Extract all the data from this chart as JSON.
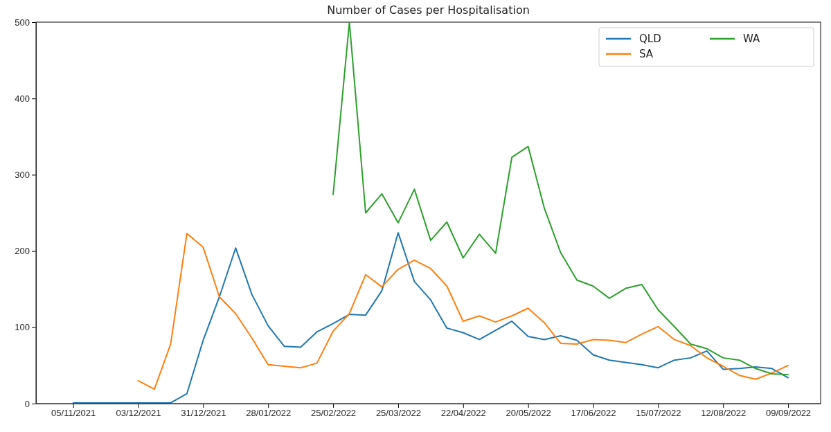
{
  "chart_data": {
    "type": "line",
    "title": "Number of Cases per Hospitalisation",
    "x": [
      "2021-11-05",
      "2021-11-12",
      "2021-11-19",
      "2021-11-26",
      "2021-12-03",
      "2021-12-10",
      "2021-12-17",
      "2021-12-24",
      "2021-12-31",
      "2022-01-07",
      "2022-01-14",
      "2022-01-21",
      "2022-01-28",
      "2022-02-04",
      "2022-02-11",
      "2022-02-18",
      "2022-02-25",
      "2022-03-04",
      "2022-03-11",
      "2022-03-18",
      "2022-03-25",
      "2022-04-01",
      "2022-04-08",
      "2022-04-15",
      "2022-04-22",
      "2022-04-29",
      "2022-05-06",
      "2022-05-13",
      "2022-05-20",
      "2022-05-27",
      "2022-06-03",
      "2022-06-10",
      "2022-06-17",
      "2022-06-24",
      "2022-07-01",
      "2022-07-08",
      "2022-07-15",
      "2022-07-22",
      "2022-07-29",
      "2022-08-05",
      "2022-08-12",
      "2022-08-19",
      "2022-08-26",
      "2022-09-02",
      "2022-09-09"
    ],
    "series": [
      {
        "name": "QLD",
        "color": "#1f77b4",
        "values": [
          1,
          1,
          1,
          1,
          1,
          1,
          1,
          13,
          83,
          140,
          204,
          143,
          102,
          75,
          74,
          94,
          105,
          117,
          116,
          148,
          224,
          160,
          136,
          99,
          93,
          84,
          96,
          108,
          88,
          84,
          89,
          83,
          64,
          57,
          54,
          51,
          47,
          57,
          60,
          69,
          45,
          46,
          48,
          46,
          34
        ]
      },
      {
        "name": "SA",
        "color": "#ff7f0e",
        "values": [
          null,
          null,
          null,
          null,
          30,
          19,
          78,
          223,
          205,
          140,
          118,
          86,
          51,
          49,
          47,
          53,
          95,
          118,
          169,
          153,
          176,
          188,
          177,
          154,
          108,
          115,
          107,
          115,
          125,
          106,
          79,
          78,
          84,
          83,
          80,
          91,
          101,
          84,
          76,
          60,
          49,
          37,
          32,
          40,
          50
        ]
      },
      {
        "name": "WA",
        "color": "#2ca02c",
        "values": [
          null,
          null,
          null,
          null,
          null,
          null,
          null,
          null,
          null,
          null,
          null,
          null,
          null,
          null,
          null,
          null,
          274,
          500,
          250,
          275,
          237,
          281,
          214,
          238,
          191,
          222,
          197,
          323,
          337,
          256,
          198,
          162,
          154,
          138,
          151,
          156,
          123,
          101,
          78,
          72,
          60,
          57,
          46,
          39,
          38
        ]
      }
    ],
    "xlim": [
      "2021-10-20",
      "2022-09-23"
    ],
    "xticks": [
      {
        "value": "2021-11-05",
        "label": "05/11/2021"
      },
      {
        "value": "2021-12-03",
        "label": "03/12/2021"
      },
      {
        "value": "2021-12-31",
        "label": "31/12/2021"
      },
      {
        "value": "2022-01-28",
        "label": "28/01/2022"
      },
      {
        "value": "2022-02-25",
        "label": "25/02/2022"
      },
      {
        "value": "2022-03-25",
        "label": "25/03/2022"
      },
      {
        "value": "2022-04-22",
        "label": "22/04/2022"
      },
      {
        "value": "2022-05-20",
        "label": "20/05/2022"
      },
      {
        "value": "2022-06-17",
        "label": "17/06/2022"
      },
      {
        "value": "2022-07-15",
        "label": "15/07/2022"
      },
      {
        "value": "2022-08-12",
        "label": "12/08/2022"
      },
      {
        "value": "2022-09-09",
        "label": "09/09/2022"
      }
    ],
    "ylim": [
      0,
      500
    ],
    "yticks": [
      0,
      100,
      200,
      300,
      400,
      500
    ],
    "grid": false,
    "legend": "top right"
  }
}
